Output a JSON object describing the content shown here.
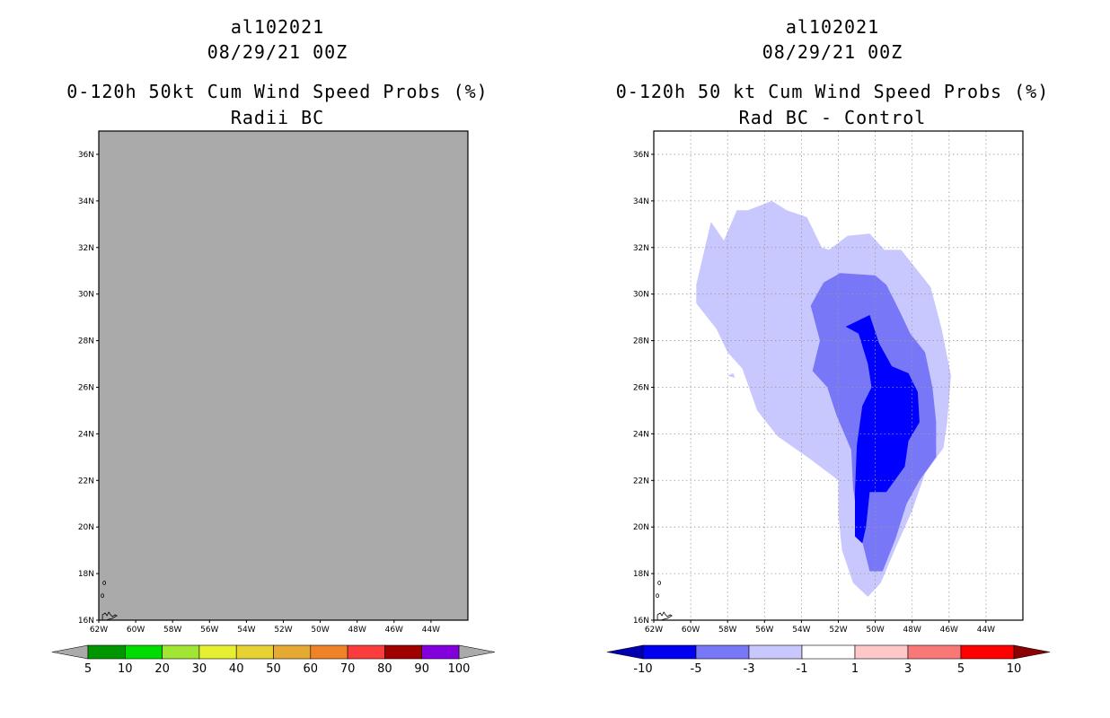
{
  "chart_data": [
    {
      "type": "heatmap",
      "storm_id": "al102021",
      "datetime": "08/29/21 00Z",
      "title": "0-120h 50kt Cum Wind Speed Probs (%)",
      "subtitle": "Radii BC",
      "xlim": [
        -62,
        -42
      ],
      "ylim": [
        16,
        37
      ],
      "x_ticks": [
        -62,
        -60,
        -58,
        -56,
        -54,
        -52,
        -50,
        -48,
        -46,
        -44
      ],
      "x_tick_labels": [
        "62W",
        "60W",
        "58W",
        "56W",
        "54W",
        "52W",
        "50W",
        "48W",
        "46W",
        "44W"
      ],
      "y_ticks": [
        16,
        18,
        20,
        22,
        24,
        26,
        28,
        30,
        32,
        34,
        36
      ],
      "y_tick_labels": [
        "16N",
        "18N",
        "20N",
        "22N",
        "24N",
        "26N",
        "28N",
        "30N",
        "32N",
        "34N",
        "36N"
      ],
      "grid": false,
      "field": "uniform (below 5%)",
      "fill_color": "#aaaaaa",
      "colorbar": {
        "colors": [
          "#009600",
          "#00dc00",
          "#a0e632",
          "#e6f032",
          "#e6d232",
          "#e6aa32",
          "#f08228",
          "#fa3c3c",
          "#a00000",
          "#8200dc"
        ],
        "labels": [
          "5",
          "10",
          "20",
          "30",
          "40",
          "50",
          "60",
          "70",
          "80",
          "90",
          "100"
        ],
        "under_color": "#aaaaaa",
        "over_color": "#aaaaaa"
      }
    },
    {
      "type": "heatmap",
      "storm_id": "al102021",
      "datetime": "08/29/21 00Z",
      "title": "0-120h 50 kt Cum Wind Speed Probs (%)",
      "subtitle": "Rad BC - Control",
      "xlim": [
        -62,
        -42
      ],
      "ylim": [
        16,
        37
      ],
      "x_ticks": [
        -62,
        -60,
        -58,
        -56,
        -54,
        -52,
        -50,
        -48,
        -46,
        -44
      ],
      "x_tick_labels": [
        "62W",
        "60W",
        "58W",
        "56W",
        "54W",
        "52W",
        "50W",
        "48W",
        "46W",
        "44W"
      ],
      "y_ticks": [
        16,
        18,
        20,
        22,
        24,
        26,
        28,
        30,
        32,
        34,
        36
      ],
      "y_tick_labels": [
        "16N",
        "18N",
        "20N",
        "22N",
        "24N",
        "26N",
        "28N",
        "30N",
        "32N",
        "34N",
        "36N"
      ],
      "grid": true,
      "contours": [
        {
          "range": "-3 to -1",
          "color": "#c8c8ff",
          "polygon": [
            [
              -58.9,
              33.1
            ],
            [
              -58.2,
              32.3
            ],
            [
              -57.5,
              33.6
            ],
            [
              -56.9,
              33.6
            ],
            [
              -55.6,
              34.0
            ],
            [
              -54.8,
              33.6
            ],
            [
              -53.7,
              33.3
            ],
            [
              -52.9,
              32.0
            ],
            [
              -52.5,
              31.9
            ],
            [
              -51.5,
              32.5
            ],
            [
              -50.3,
              32.6
            ],
            [
              -49.5,
              31.9
            ],
            [
              -48.6,
              31.9
            ],
            [
              -47.9,
              31.2
            ],
            [
              -47.0,
              30.3
            ],
            [
              -46.4,
              28.5
            ],
            [
              -45.9,
              26.5
            ],
            [
              -46.1,
              24.5
            ],
            [
              -46.3,
              23.4
            ],
            [
              -47.3,
              22.3
            ],
            [
              -48.0,
              20.7
            ],
            [
              -48.9,
              19.1
            ],
            [
              -49.7,
              17.6
            ],
            [
              -50.4,
              17.0
            ],
            [
              -51.2,
              17.6
            ],
            [
              -51.8,
              19.0
            ],
            [
              -52.0,
              20.5
            ],
            [
              -52.0,
              22.0
            ],
            [
              -53.5,
              22.9
            ],
            [
              -55.3,
              23.9
            ],
            [
              -56.4,
              25.0
            ],
            [
              -57.2,
              26.8
            ],
            [
              -58.0,
              27.5
            ],
            [
              -58.6,
              28.5
            ],
            [
              -59.7,
              29.6
            ],
            [
              -59.7,
              30.4
            ]
          ]
        },
        {
          "range": "-5 to -3",
          "color": "#7777f7",
          "polygon": [
            [
              -52.8,
              30.5
            ],
            [
              -51.9,
              30.9
            ],
            [
              -50.0,
              30.8
            ],
            [
              -49.4,
              30.4
            ],
            [
              -48.7,
              29.3
            ],
            [
              -48.1,
              28.3
            ],
            [
              -47.3,
              27.5
            ],
            [
              -46.9,
              26.0
            ],
            [
              -46.7,
              24.5
            ],
            [
              -46.7,
              23.0
            ],
            [
              -47.6,
              22.0
            ],
            [
              -48.3,
              21.0
            ],
            [
              -48.9,
              19.5
            ],
            [
              -49.6,
              18.1
            ],
            [
              -50.3,
              18.1
            ],
            [
              -50.9,
              20.0
            ],
            [
              -51.2,
              21.7
            ],
            [
              -51.3,
              23.3
            ],
            [
              -52.1,
              24.8
            ],
            [
              -52.6,
              26.0
            ],
            [
              -53.4,
              26.7
            ],
            [
              -53.0,
              28.0
            ],
            [
              -53.5,
              29.5
            ]
          ]
        },
        {
          "range": "-10 to -5",
          "color": "#0000ff",
          "polygon": [
            [
              -51.6,
              28.6
            ],
            [
              -50.3,
              29.1
            ],
            [
              -49.8,
              27.9
            ],
            [
              -49.1,
              26.9
            ],
            [
              -48.2,
              26.6
            ],
            [
              -47.7,
              25.8
            ],
            [
              -47.6,
              24.5
            ],
            [
              -48.2,
              23.7
            ],
            [
              -48.4,
              22.6
            ],
            [
              -49.4,
              21.5
            ],
            [
              -50.3,
              21.5
            ],
            [
              -50.5,
              20.0
            ],
            [
              -50.7,
              19.3
            ],
            [
              -51.1,
              19.6
            ],
            [
              -51.1,
              21.5
            ],
            [
              -51.0,
              23.5
            ],
            [
              -50.7,
              25.2
            ],
            [
              -50.2,
              26.0
            ],
            [
              -50.4,
              27.0
            ],
            [
              -50.9,
              28.3
            ]
          ]
        },
        {
          "range": "-3 to -1",
          "color": "#c8c8ff",
          "polygon": [
            [
              -58.0,
              26.5
            ],
            [
              -57.7,
              26.6
            ],
            [
              -57.6,
              26.4
            ]
          ]
        }
      ],
      "colorbar": {
        "colors": [
          "#0000f0",
          "#7777f7",
          "#c8c8ff",
          "#ffffff",
          "#ffc8c8",
          "#f87878",
          "#ff0000"
        ],
        "labels": [
          "-10",
          "-5",
          "-3",
          "-1",
          "1",
          "3",
          "5",
          "10"
        ],
        "under_color": "#0000b0",
        "over_color": "#8b0000"
      }
    }
  ]
}
